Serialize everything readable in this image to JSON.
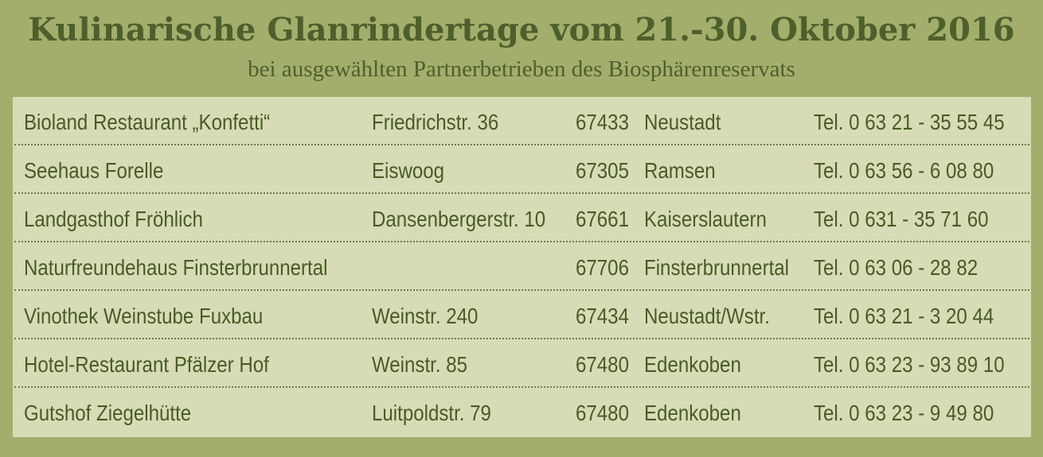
{
  "header": {
    "title": "Kulinarische Glanrindertage vom 21.-30. Oktober 2016",
    "subtitle": "bei ausgewählten Partnerbetrieben des Biosphärenreservats"
  },
  "restaurants": [
    {
      "name": "Bioland Restaurant „Konfetti“",
      "address": "Friedrichstr. 36",
      "zip": "67433",
      "city": "Neustadt",
      "phone": "Tel. 0 63 21 - 35 55 45"
    },
    {
      "name": "Seehaus Forelle",
      "address": "Eiswoog",
      "zip": "67305",
      "city": "Ramsen",
      "phone": "Tel. 0 63 56 - 6 08 80"
    },
    {
      "name": "Landgasthof Fröhlich",
      "address": "Dansenbergerstr. 10",
      "zip": "67661",
      "city": "Kaiserslautern",
      "phone": "Tel. 0 631 - 35 71 60"
    },
    {
      "name": "Naturfreundehaus Finsterbrunnertal",
      "address": "",
      "zip": "67706",
      "city": "Finsterbrunnertal",
      "phone": "Tel. 0 63 06 - 28 82"
    },
    {
      "name": "Vinothek Weinstube Fuxbau",
      "address": "Weinstr. 240",
      "zip": "67434",
      "city": "Neustadt/Wstr.",
      "phone": "Tel. 0 63 21 - 3 20 44"
    },
    {
      "name": "Hotel-Restaurant Pfälzer Hof",
      "address": "Weinstr. 85",
      "zip": "67480",
      "city": "Edenkoben",
      "phone": "Tel. 0 63 23 - 93 89 10"
    },
    {
      "name": "Gutshof Ziegelhütte",
      "address": "Luitpoldstr. 79",
      "zip": "67480",
      "city": "Edenkoben",
      "phone": "Tel. 0 63 23 - 9 49 80"
    }
  ],
  "colors": {
    "background": "#a3ae6c",
    "panel": "#d7dcb6",
    "text": "#4a5a26",
    "title": "#4f5f2c"
  }
}
